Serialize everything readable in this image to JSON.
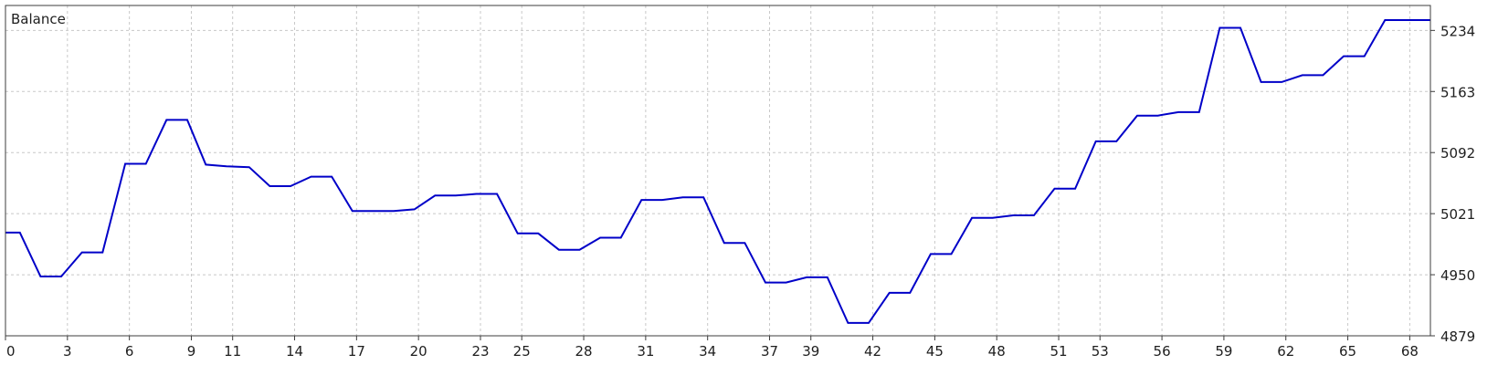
{
  "chart_data": {
    "type": "line",
    "title": "Balance",
    "xlabel": "",
    "ylabel": "",
    "xlim": [
      0,
      69
    ],
    "ylim": [
      4879,
      5263
    ],
    "x_ticks": [
      0,
      3,
      6,
      9,
      11,
      14,
      17,
      20,
      23,
      25,
      28,
      31,
      34,
      37,
      39,
      42,
      45,
      48,
      51,
      53,
      56,
      59,
      62,
      65,
      68
    ],
    "y_ticks": [
      4879,
      4950,
      5021,
      5092,
      5163,
      5234
    ],
    "grid": true,
    "colors": {
      "line": "#0000c8",
      "grid": "#c8c8c8",
      "frame": "#3c3c3c"
    },
    "series": [
      {
        "x": [
          0,
          0.7,
          1.7,
          2.7,
          3.7,
          4.7,
          5.8,
          6.8,
          7.8,
          8.8,
          9.7,
          10.7,
          11.8,
          12.8,
          13.8,
          14.8,
          15.8,
          16.8,
          17.8,
          18.8,
          19.8,
          20.8,
          21.8,
          22.8,
          23.8,
          24.8,
          25.8,
          26.8,
          27.8,
          28.8,
          29.8,
          30.8,
          31.8,
          32.8,
          33.8,
          34.8,
          35.8,
          36.8,
          37.8,
          38.8,
          39.8,
          40.8,
          41.8,
          42.8,
          43.8,
          44.8,
          45.8,
          46.8,
          47.8,
          48.8,
          49.8,
          50.8,
          51.8,
          52.8,
          53.8,
          54.8,
          55.8,
          56.8,
          57.8,
          58.8,
          59.8,
          60.8,
          61.8,
          62.8,
          63.8,
          64.8,
          65.8,
          66.8,
          67.8,
          68.8,
          69
        ],
        "values": [
          4999,
          4999,
          4948,
          4948,
          4976,
          4976,
          5079,
          5079,
          5130,
          5130,
          5078,
          5076,
          5075,
          5053,
          5053,
          5064,
          5064,
          5024,
          5024,
          5024,
          5026,
          5042,
          5042,
          5044,
          5044,
          4998,
          4998,
          4979,
          4979,
          4993,
          4993,
          5037,
          5037,
          5040,
          5040,
          4987,
          4987,
          4941,
          4941,
          4947,
          4947,
          4894,
          4894,
          4929,
          4929,
          4974,
          4974,
          5016,
          5016,
          5019,
          5019,
          5050,
          5050,
          5105,
          5105,
          5135,
          5135,
          5139,
          5139,
          5237,
          5237,
          5174,
          5174,
          5182,
          5182,
          5204,
          5204,
          5246,
          5246,
          5246,
          5246
        ]
      }
    ]
  }
}
